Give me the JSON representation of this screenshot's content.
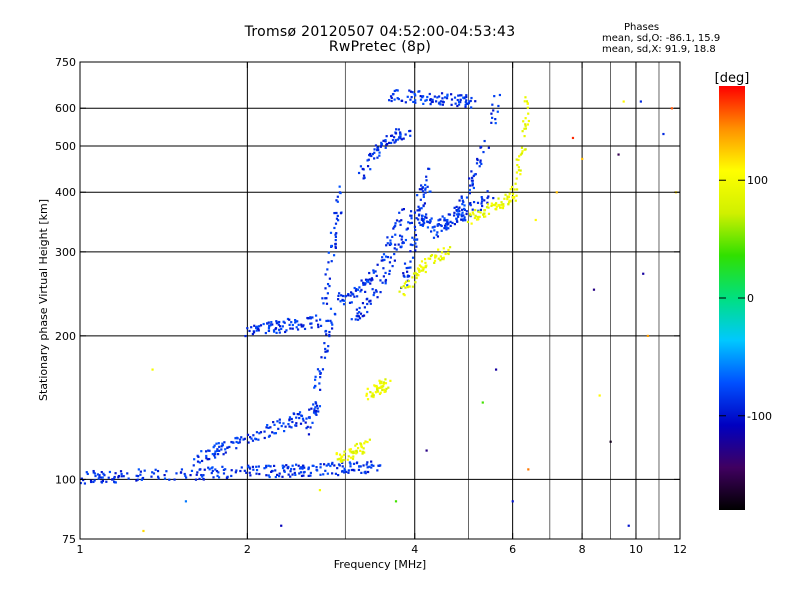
{
  "chart_data": {
    "type": "scatter",
    "title": "Tromsø 20120507 04:52:00-04:53:43",
    "subtitle": "RwPretec (8p)",
    "xlabel": "Frequency [MHz]",
    "ylabel": "Stationary phase Virtual Height [km]",
    "x_scale": "log",
    "y_scale": "log",
    "xlim": [
      1,
      12
    ],
    "ylim": [
      75,
      750
    ],
    "x_ticks": [
      1,
      2,
      4,
      6,
      8,
      10,
      12
    ],
    "y_ticks": [
      75,
      100,
      200,
      300,
      400,
      500,
      600,
      750
    ],
    "x_minor_gridlines": [
      3,
      5,
      7,
      9,
      11
    ],
    "grid": true,
    "colorbar": {
      "label": "[deg]",
      "min": -180,
      "max": 180,
      "ticks": [
        100,
        0,
        -100
      ],
      "colormap": [
        "#000000",
        "#400060",
        "#0000c0",
        "#0050ff",
        "#00c8ff",
        "#00e080",
        "#30e000",
        "#d0f000",
        "#ffff00",
        "#ff9000",
        "#ff0000"
      ]
    },
    "stats": {
      "heading": "Phases",
      "line1": "mean, sd,O: -86.1, 15.9",
      "line2": "mean, sd,X:  91.9, 18.8"
    },
    "series": [
      {
        "name": "O",
        "phase_mean": -86.1,
        "phase_sd": 15.9,
        "traces": [
          {
            "x0": 1.0,
            "x1": 3.5,
            "y0": 101,
            "y1": 106,
            "curve": 0
          },
          {
            "x0": 1.6,
            "x1": 2.7,
            "y0": 110,
            "y1": 140,
            "curve": 0
          },
          {
            "x0": 2.55,
            "x1": 2.85,
            "y0": 120,
            "y1": 230,
            "curve": 0
          },
          {
            "x0": 2.0,
            "x1": 2.7,
            "y0": 205,
            "y1": 215,
            "curve": 0
          },
          {
            "x0": 2.75,
            "x1": 2.95,
            "y0": 230,
            "y1": 410,
            "curve": 0
          },
          {
            "x0": 2.9,
            "x1": 3.8,
            "y0": 240,
            "y1": 370,
            "curve": -0.6
          },
          {
            "x0": 3.1,
            "x1": 4.2,
            "y0": 215,
            "y1": 420,
            "curve": -0.4
          },
          {
            "x0": 3.2,
            "x1": 3.9,
            "y0": 430,
            "y1": 530,
            "curve": 0.3
          },
          {
            "x0": 3.6,
            "x1": 5.1,
            "y0": 640,
            "y1": 620,
            "curve": 0
          },
          {
            "x0": 3.8,
            "x1": 4.3,
            "y0": 250,
            "y1": 450,
            "curve": 0
          },
          {
            "x0": 4.3,
            "x1": 5.7,
            "y0": 330,
            "y1": 650,
            "curve": -0.8
          },
          {
            "x0": 4.1,
            "x1": 5.5,
            "y0": 350,
            "y1": 400,
            "curve": -0.3
          }
        ]
      },
      {
        "name": "X",
        "phase_mean": 91.9,
        "phase_sd": 18.8,
        "traces": [
          {
            "x0": 2.9,
            "x1": 3.3,
            "y0": 110,
            "y1": 118,
            "curve": 0
          },
          {
            "x0": 3.3,
            "x1": 3.6,
            "y0": 150,
            "y1": 160,
            "curve": 0
          },
          {
            "x0": 3.8,
            "x1": 4.6,
            "y0": 245,
            "y1": 300,
            "curve": 0.2
          },
          {
            "x0": 5.0,
            "x1": 6.0,
            "y0": 350,
            "y1": 390,
            "curve": 0
          },
          {
            "x0": 5.9,
            "x1": 6.4,
            "y0": 380,
            "y1": 640,
            "curve": -0.5
          }
        ]
      }
    ],
    "scatter_points": [
      {
        "x": 1.3,
        "y": 78,
        "phase": 120
      },
      {
        "x": 1.35,
        "y": 170,
        "phase": 100
      },
      {
        "x": 1.55,
        "y": 90,
        "phase": -60
      },
      {
        "x": 2.3,
        "y": 80,
        "phase": -110
      },
      {
        "x": 2.7,
        "y": 95,
        "phase": 100
      },
      {
        "x": 3.7,
        "y": 90,
        "phase": 40
      },
      {
        "x": 4.2,
        "y": 115,
        "phase": -130
      },
      {
        "x": 5.3,
        "y": 145,
        "phase": 40
      },
      {
        "x": 5.6,
        "y": 170,
        "phase": -120
      },
      {
        "x": 6.0,
        "y": 90,
        "phase": -100
      },
      {
        "x": 6.4,
        "y": 105,
        "phase": 150
      },
      {
        "x": 6.6,
        "y": 350,
        "phase": 110
      },
      {
        "x": 7.2,
        "y": 400,
        "phase": 130
      },
      {
        "x": 7.7,
        "y": 520,
        "phase": 170
      },
      {
        "x": 8.0,
        "y": 470,
        "phase": 130
      },
      {
        "x": 8.4,
        "y": 250,
        "phase": -130
      },
      {
        "x": 8.6,
        "y": 150,
        "phase": 110
      },
      {
        "x": 9.0,
        "y": 120,
        "phase": -170
      },
      {
        "x": 9.3,
        "y": 480,
        "phase": -150
      },
      {
        "x": 9.5,
        "y": 620,
        "phase": 110
      },
      {
        "x": 9.7,
        "y": 80,
        "phase": -100
      },
      {
        "x": 10.2,
        "y": 620,
        "phase": -90
      },
      {
        "x": 10.3,
        "y": 270,
        "phase": -120
      },
      {
        "x": 10.5,
        "y": 200,
        "phase": 140
      },
      {
        "x": 11.2,
        "y": 530,
        "phase": -90
      },
      {
        "x": 11.6,
        "y": 600,
        "phase": 160
      },
      {
        "x": 11.8,
        "y": 400,
        "phase": 120
      }
    ]
  }
}
